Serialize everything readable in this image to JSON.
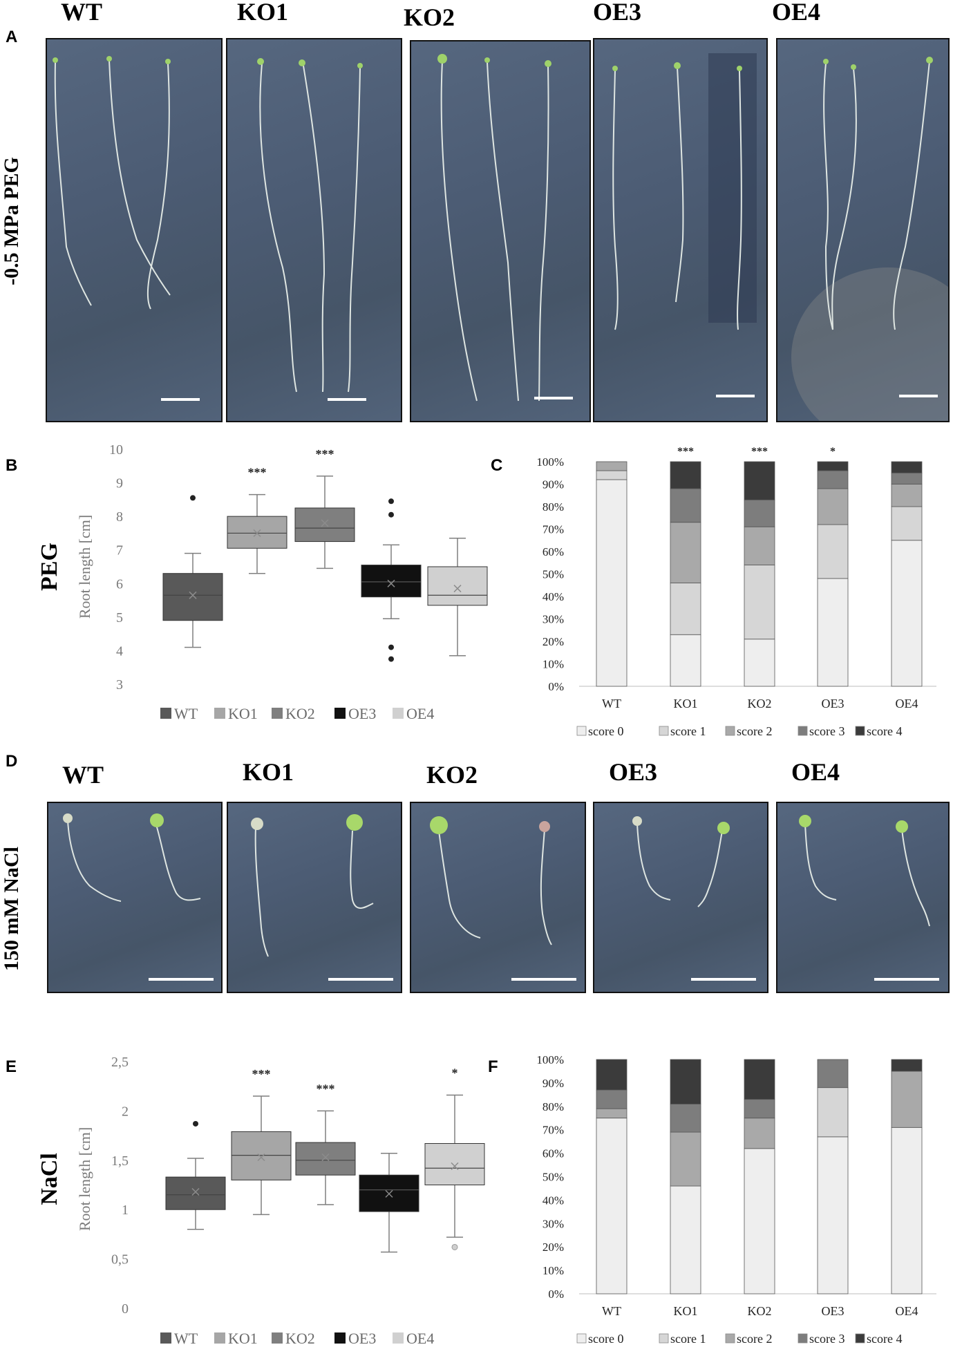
{
  "panel_letters": {
    "A": "A",
    "B": "B",
    "C": "C",
    "D": "D",
    "E": "E",
    "F": "F"
  },
  "panel_a": {
    "row_label": "-0.5 MPa PEG",
    "genotypes": [
      "WT",
      "KO1",
      "KO2",
      "OE3",
      "OE4"
    ]
  },
  "panel_d": {
    "row_label": "150 mM NaCl",
    "genotypes": [
      "WT",
      "KO1",
      "KO2",
      "OE3",
      "OE4"
    ]
  },
  "chart_data": [
    {
      "id": "B",
      "type": "box",
      "title": "PEG",
      "ylabel": "Root length [cm]",
      "ylim": [
        3,
        10
      ],
      "yticks": [
        "3",
        "4",
        "5",
        "6",
        "7",
        "8",
        "9",
        "10"
      ],
      "ytick_values": [
        3,
        4,
        5,
        6,
        7,
        8,
        9,
        10
      ],
      "categories": [
        "WT",
        "KO1",
        "KO2",
        "OE3",
        "OE4"
      ],
      "colors": [
        "#595959",
        "#a6a6a6",
        "#7f7f7f",
        "#111111",
        "#d0d0d0"
      ],
      "boxes": [
        {
          "min": 4.1,
          "q1": 4.9,
          "median": 5.65,
          "q3": 6.3,
          "max": 6.9,
          "mean": 5.65,
          "outliers": [
            8.55
          ]
        },
        {
          "min": 6.3,
          "q1": 7.05,
          "median": 7.5,
          "q3": 8.0,
          "max": 8.65,
          "mean": 7.5,
          "outliers": []
        },
        {
          "min": 6.45,
          "q1": 7.25,
          "median": 7.65,
          "q3": 8.25,
          "max": 9.2,
          "mean": 7.8,
          "outliers": []
        },
        {
          "min": 4.95,
          "q1": 5.6,
          "median": 6.05,
          "q3": 6.55,
          "max": 7.15,
          "mean": 6.0,
          "outliers": [
            8.45,
            8.05,
            4.1,
            3.75
          ]
        },
        {
          "min": 3.85,
          "q1": 5.35,
          "median": 5.65,
          "q3": 6.5,
          "max": 7.35,
          "mean": 5.85,
          "outliers": []
        }
      ],
      "significance": [
        "",
        "***",
        "***",
        "",
        ""
      ],
      "legend": [
        "WT",
        "KO1",
        "KO2",
        "OE3",
        "OE4"
      ]
    },
    {
      "id": "C",
      "type": "stacked-bar",
      "ytick_labels": [
        "0%",
        "10%",
        "20%",
        "30%",
        "40%",
        "50%",
        "60%",
        "70%",
        "80%",
        "90%",
        "100%"
      ],
      "categories": [
        "WT",
        "KO1",
        "KO2",
        "OE3",
        "OE4"
      ],
      "series": [
        {
          "name": "score 0",
          "color": "#eeeeee",
          "values": [
            92,
            23,
            21,
            48,
            65
          ]
        },
        {
          "name": "score 1",
          "color": "#d6d6d6",
          "values": [
            4,
            23,
            33,
            24,
            15
          ]
        },
        {
          "name": "score 2",
          "color": "#a9a9a9",
          "values": [
            4,
            27,
            17,
            16,
            10
          ]
        },
        {
          "name": "score 3",
          "color": "#7d7d7d",
          "values": [
            0,
            15,
            12,
            8,
            5
          ]
        },
        {
          "name": "score 4",
          "color": "#3b3b3b",
          "values": [
            0,
            12,
            17,
            4,
            5
          ]
        }
      ],
      "significance": [
        "",
        "***",
        "***",
        "*",
        ""
      ]
    },
    {
      "id": "E",
      "type": "box",
      "title": "NaCl",
      "ylabel": "Root length [cm]",
      "ylim": [
        0,
        2.5
      ],
      "yticks": [
        "0",
        "0,5",
        "1",
        "1,5",
        "2",
        "2,5"
      ],
      "ytick_values": [
        0,
        0.5,
        1,
        1.5,
        2,
        2.5
      ],
      "categories": [
        "WT",
        "KO1",
        "KO2",
        "OE3",
        "OE4"
      ],
      "colors": [
        "#595959",
        "#a6a6a6",
        "#7f7f7f",
        "#111111",
        "#d0d0d0"
      ],
      "boxes": [
        {
          "min": 0.8,
          "q1": 1.0,
          "median": 1.15,
          "q3": 1.33,
          "max": 1.52,
          "mean": 1.18,
          "outliers": [
            1.87
          ]
        },
        {
          "min": 0.95,
          "q1": 1.3,
          "median": 1.55,
          "q3": 1.79,
          "max": 2.15,
          "mean": 1.53,
          "outliers": []
        },
        {
          "min": 1.05,
          "q1": 1.35,
          "median": 1.5,
          "q3": 1.68,
          "max": 2.0,
          "mean": 1.53,
          "outliers": []
        },
        {
          "min": 0.57,
          "q1": 0.98,
          "median": 1.2,
          "q3": 1.35,
          "max": 1.57,
          "mean": 1.16,
          "outliers": []
        },
        {
          "min": 0.72,
          "q1": 1.25,
          "median": 1.42,
          "q3": 1.67,
          "max": 2.16,
          "mean": 1.44,
          "outliers": [
            0.62
          ]
        }
      ],
      "significance": [
        "",
        "***",
        "***",
        "",
        "*"
      ],
      "legend": [
        "WT",
        "KO1",
        "KO2",
        "OE3",
        "OE4"
      ]
    },
    {
      "id": "F",
      "type": "stacked-bar",
      "ytick_labels": [
        "0%",
        "10%",
        "20%",
        "30%",
        "40%",
        "50%",
        "60%",
        "70%",
        "80%",
        "90%",
        "100%"
      ],
      "categories": [
        "WT",
        "KO1",
        "KO2",
        "OE3",
        "OE4"
      ],
      "series": [
        {
          "name": "score 0",
          "color": "#eeeeee",
          "values": [
            75,
            46,
            62,
            67,
            71
          ]
        },
        {
          "name": "score 1",
          "color": "#d6d6d6",
          "values": [
            0,
            0,
            0,
            21,
            0
          ]
        },
        {
          "name": "score 2",
          "color": "#a9a9a9",
          "values": [
            4,
            23,
            13,
            0,
            24
          ]
        },
        {
          "name": "score 3",
          "color": "#7d7d7d",
          "values": [
            8,
            12,
            8,
            12,
            0
          ]
        },
        {
          "name": "score 4",
          "color": "#3b3b3b",
          "values": [
            13,
            19,
            17,
            0,
            5
          ]
        }
      ],
      "significance": [
        "",
        "",
        "",
        "",
        ""
      ]
    }
  ]
}
